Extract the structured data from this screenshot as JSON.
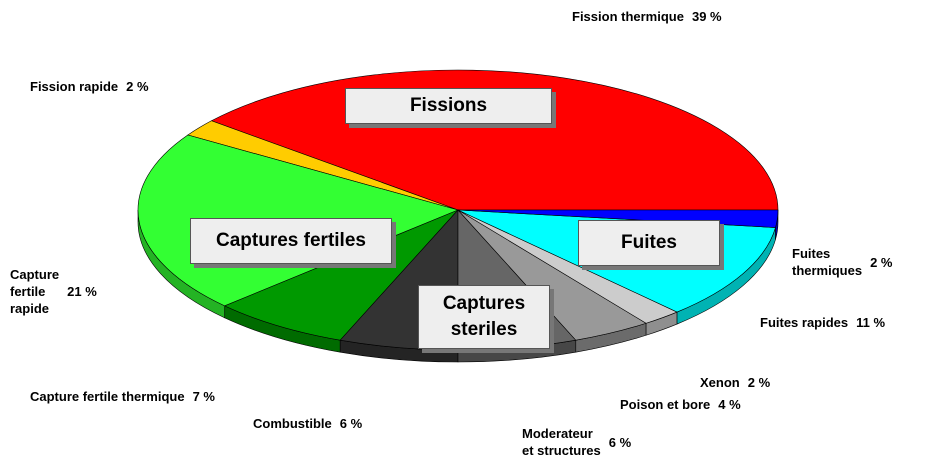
{
  "chart_data": {
    "type": "pie",
    "categories": [
      "Fission thermique",
      "Fission rapide",
      "Capture\nfertile\nrapide",
      "Capture fertile thermique",
      "Combustible",
      "Moderateur\net structures",
      "Poison et bore",
      "Xenon",
      "Fuites rapides",
      "Fuites\nthermiques"
    ],
    "values": [
      39,
      2,
      21,
      7,
      6,
      6,
      4,
      2,
      11,
      2
    ],
    "value_labels": [
      "39 %",
      "2 %",
      "21 %",
      "7 %",
      "6 %",
      "6 %",
      "4 %",
      "2 %",
      "11 %",
      "2 %"
    ],
    "colors": [
      "#ff0000",
      "#ffcc00",
      "#33ff33",
      "#009900",
      "#333333",
      "#666666",
      "#999999",
      "#cccccc",
      "#00ffff",
      "#0000ff"
    ],
    "annotations": [
      "Fissions",
      "Captures fertiles",
      "Captures\nsteriles",
      "Fuites"
    ]
  }
}
